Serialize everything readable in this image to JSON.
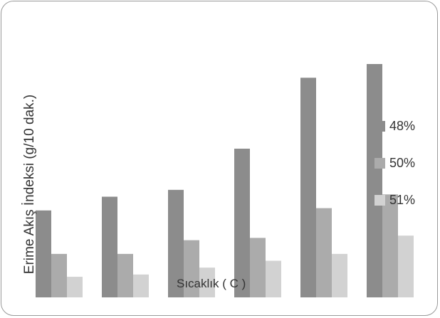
{
  "chart_data": {
    "type": "bar",
    "title": "",
    "xlabel": "Sıcaklık ( C )",
    "ylabel": "Erime Akış İndeksi (g/10 dak.)",
    "categories": [
      "",
      "",
      "",
      "",
      "",
      ""
    ],
    "series": [
      {
        "name": "48%",
        "color": "#8c8c8c",
        "values": [
          3.8,
          4.4,
          4.7,
          6.5,
          9.6,
          10.2
        ]
      },
      {
        "name": "50%",
        "color": "#ababab",
        "values": [
          1.9,
          1.9,
          2.5,
          2.6,
          3.9,
          4.5
        ]
      },
      {
        "name": "51%",
        "color": "#d2d2d2",
        "values": [
          0.9,
          1.0,
          1.3,
          1.6,
          1.9,
          2.7
        ]
      }
    ],
    "ylim": [
      0,
      10.2
    ],
    "grid": false,
    "legend_position": "right"
  }
}
